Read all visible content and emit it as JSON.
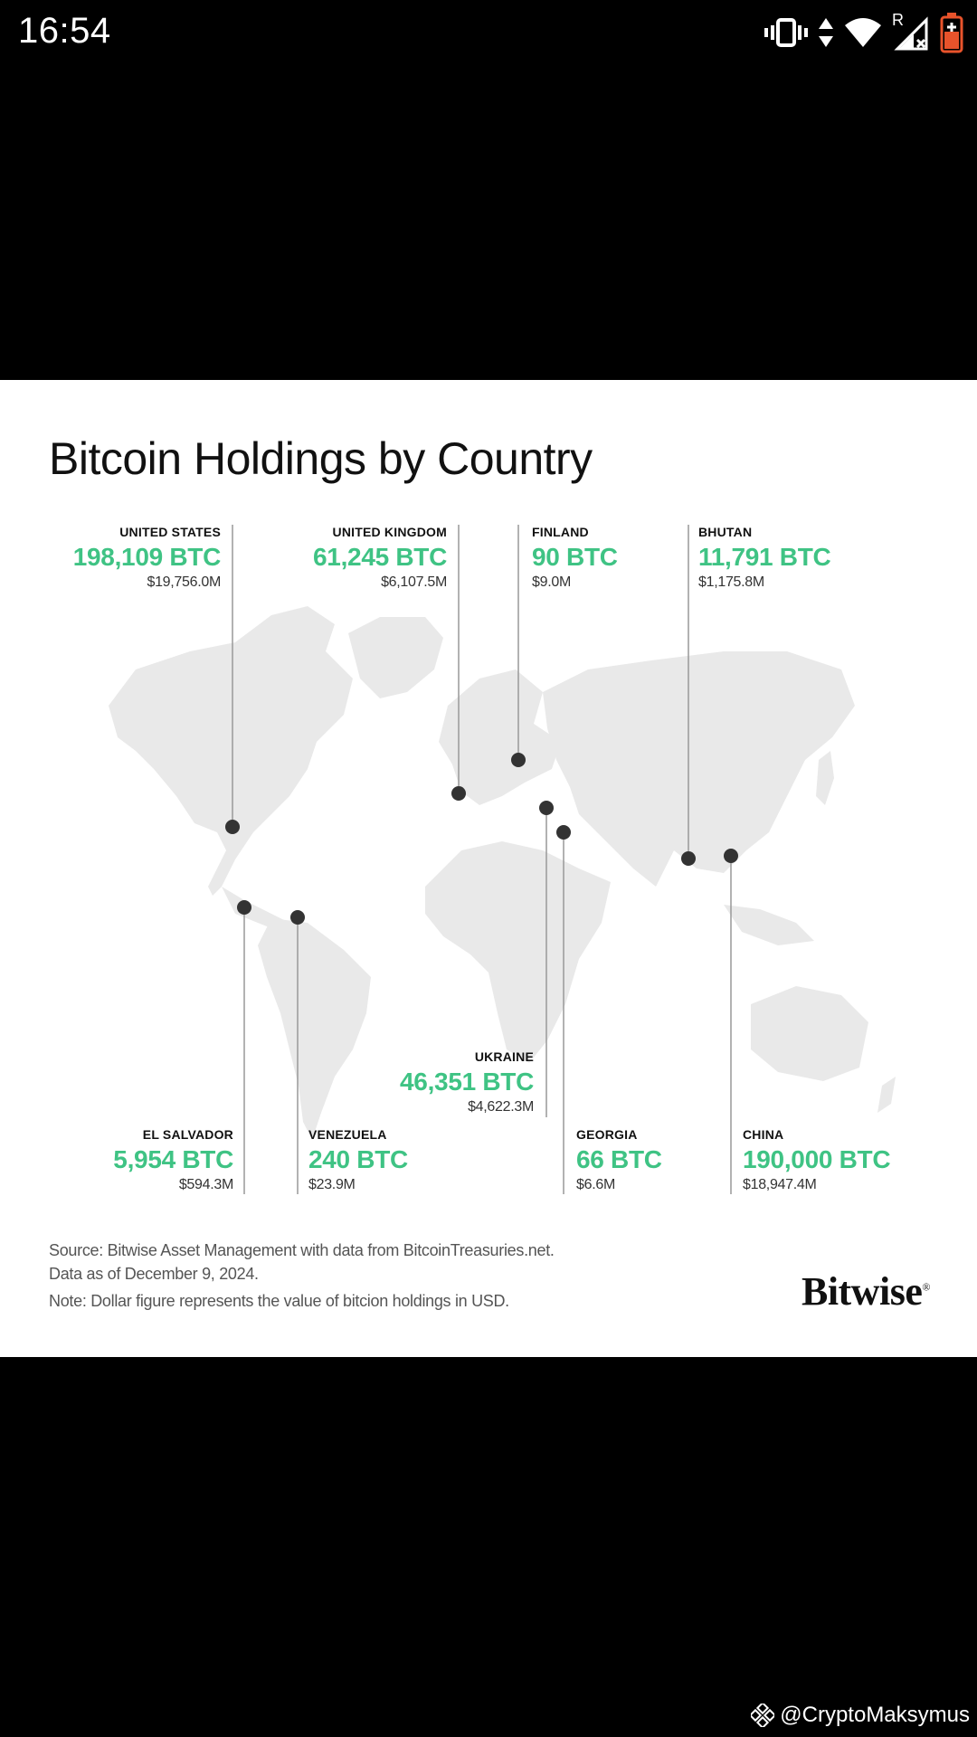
{
  "status_bar": {
    "time": "16:54",
    "roaming_letter": "R",
    "icons": [
      "vibrate-icon",
      "data-arrows-icon",
      "wifi-icon",
      "signal-icon",
      "battery-charging-icon"
    ],
    "battery_color": "#e8532b"
  },
  "infographic": {
    "title": "Bitcoin Holdings by Country",
    "accent_color": "#3fc384",
    "countries": [
      {
        "name": "UNITED STATES",
        "btc": "198,109 BTC",
        "usd": "$19,756.0M"
      },
      {
        "name": "UNITED KINGDOM",
        "btc": "61,245 BTC",
        "usd": "$6,107.5M"
      },
      {
        "name": "FINLAND",
        "btc": "90 BTC",
        "usd": "$9.0M"
      },
      {
        "name": "BHUTAN",
        "btc": "11,791 BTC",
        "usd": "$1,175.8M"
      },
      {
        "name": "UKRAINE",
        "btc": "46,351 BTC",
        "usd": "$4,622.3M"
      },
      {
        "name": "EL SALVADOR",
        "btc": "5,954 BTC",
        "usd": "$594.3M"
      },
      {
        "name": "VENEZUELA",
        "btc": "240 BTC",
        "usd": "$23.9M"
      },
      {
        "name": "GEORGIA",
        "btc": "66 BTC",
        "usd": "$6.6M"
      },
      {
        "name": "CHINA",
        "btc": "190,000 BTC",
        "usd": "$18,947.4M"
      }
    ],
    "source_line_1": "Source: Bitwise Asset Management with data from BitcoinTreasuries.net.",
    "source_line_2": "Data as of December 9, 2024.",
    "note": "Note: Dollar figure represents the value of bitcion holdings in USD.",
    "brand": "Bitwise",
    "brand_mark": "®"
  },
  "watermark": {
    "handle": "@CryptoMaksymus",
    "icon": "binance-square-icon"
  }
}
